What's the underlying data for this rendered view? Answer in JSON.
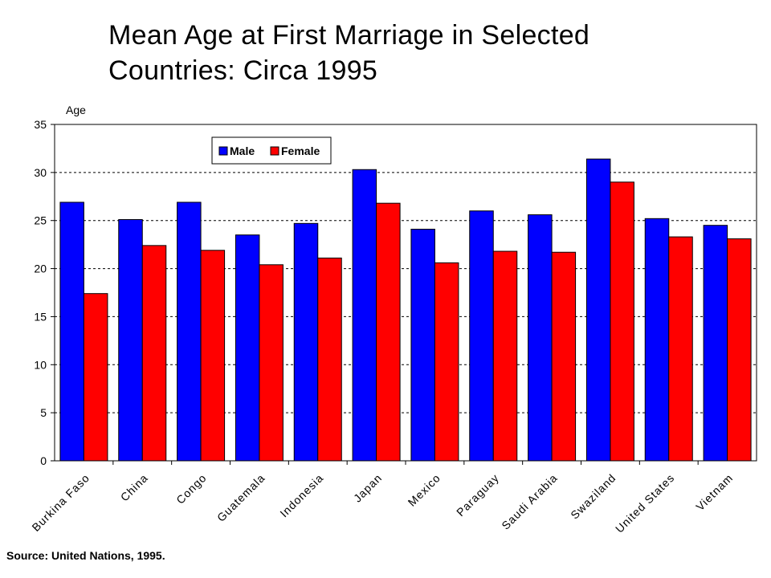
{
  "chart_data": {
    "type": "bar",
    "title_line1": "Mean Age at First Marriage in Selected",
    "title_line2": "Countries:  Circa 1995",
    "ylabel": "Age",
    "ylim": [
      0,
      35
    ],
    "yticks": [
      "0",
      "5",
      "10",
      "15",
      "20",
      "25",
      "30",
      "35"
    ],
    "grid": true,
    "legend_position": "top-left",
    "categories": [
      "Burkina Faso",
      "China",
      "Congo",
      "Guatemala",
      "Indonesia",
      "Japan",
      "Mexico",
      "Paraguay",
      "Saudi Arabia",
      "Swaziland",
      "United States",
      "Vietnam"
    ],
    "series": [
      {
        "name": "Male",
        "color": "#0000ff",
        "values": [
          26.9,
          25.1,
          26.9,
          23.5,
          24.7,
          30.3,
          24.1,
          26.0,
          25.6,
          31.4,
          25.2,
          24.5
        ]
      },
      {
        "name": "Female",
        "color": "#ff0000",
        "values": [
          17.4,
          22.4,
          21.9,
          20.4,
          21.1,
          26.8,
          20.6,
          21.8,
          21.7,
          29.0,
          23.3,
          23.1
        ]
      }
    ],
    "source": "Source: United Nations, 1995."
  }
}
